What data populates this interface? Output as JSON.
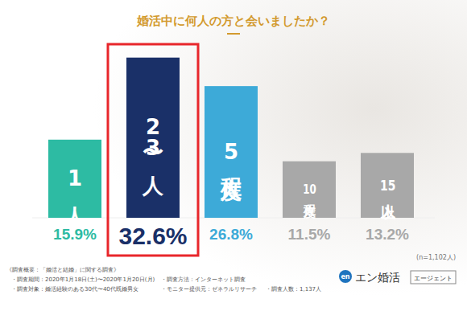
{
  "chart_data": {
    "type": "bar",
    "title": "婚活中に何人の方と会いましたか？",
    "categories": [
      "1人",
      "2〜3人",
      "5人程度",
      "10人程度",
      "15人以上"
    ],
    "values": [
      15.9,
      32.6,
      26.8,
      11.5,
      13.2
    ],
    "value_labels": [
      "15.9%",
      "32.6%",
      "26.8%",
      "11.5%",
      "13.2%"
    ],
    "colors": [
      "#2dbba3",
      "#1a3068",
      "#3daad8",
      "#a8a8a8",
      "#a8a8a8"
    ],
    "ylim": [
      0,
      35
    ],
    "data_labels": true,
    "grid": false,
    "annotations": [
      "(n=1,102人)"
    ],
    "footnotes": [
      "《調査概要：「婚活と結婚」に関する調査》",
      "・調査期間：2020年1月18日(土)〜2020年1月20日(月)",
      "・調査方法：インターネット調査",
      "・調査対象：婚活経験のある30代〜40代既婚男女",
      "・モニター提供元：ゼネラルリサーチ",
      "・調査人数：1,137人"
    ],
    "brand": [
      "en",
      "エン婚活",
      "エージェント"
    ]
  }
}
